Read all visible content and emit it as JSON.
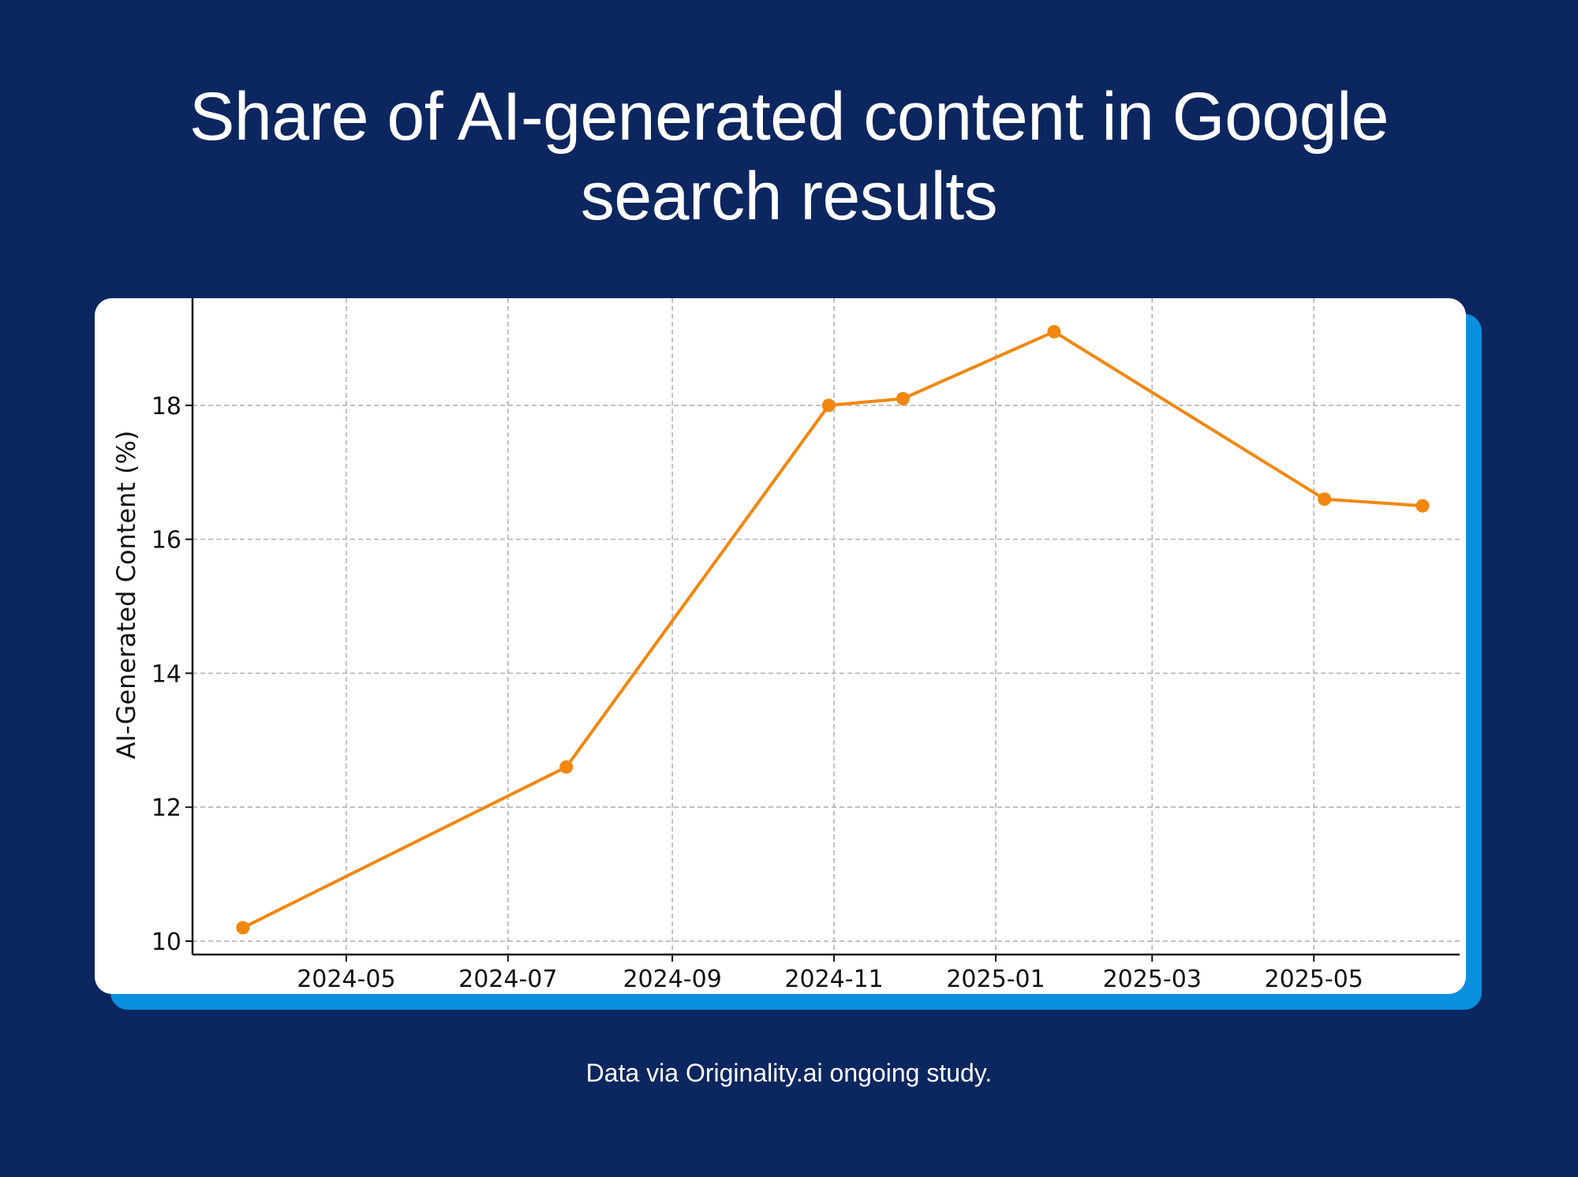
{
  "header": {
    "title": "Share of AI-generated content in Google search results"
  },
  "footer": {
    "source": "Data via Originality.ai ongoing study."
  },
  "theme": {
    "background": "#0c2660",
    "card": "#ffffff",
    "card_shadow": "#0b8fdf",
    "series_color": "#f2870f",
    "grid_color": "#b3b3b3",
    "axis_color": "#111111"
  },
  "chart_data": {
    "type": "line",
    "title": "Share of AI-generated content in Google search results",
    "xlabel": "",
    "ylabel": "AI-Generated Content (%)",
    "x_scale": "date",
    "xlim": [
      "2024-03-04",
      "2025-06-25"
    ],
    "ylim": [
      9.8,
      19.6
    ],
    "x_ticks": [
      "2024-05",
      "2024-07",
      "2024-09",
      "2024-11",
      "2025-01",
      "2025-03",
      "2025-05"
    ],
    "y_ticks": [
      10,
      12,
      14,
      16,
      18
    ],
    "grid": true,
    "grid_style": "dashed",
    "legend": "none",
    "series": [
      {
        "color": "#f2870f",
        "marker": "circle",
        "points": [
          {
            "x": "2024-03-23",
            "y": 10.2
          },
          {
            "x": "2024-07-23",
            "y": 12.6
          },
          {
            "x": "2024-10-30",
            "y": 18.0
          },
          {
            "x": "2024-11-27",
            "y": 18.1
          },
          {
            "x": "2025-01-23",
            "y": 19.1
          },
          {
            "x": "2025-05-05",
            "y": 16.6
          },
          {
            "x": "2025-06-11",
            "y": 16.5
          }
        ]
      }
    ]
  }
}
